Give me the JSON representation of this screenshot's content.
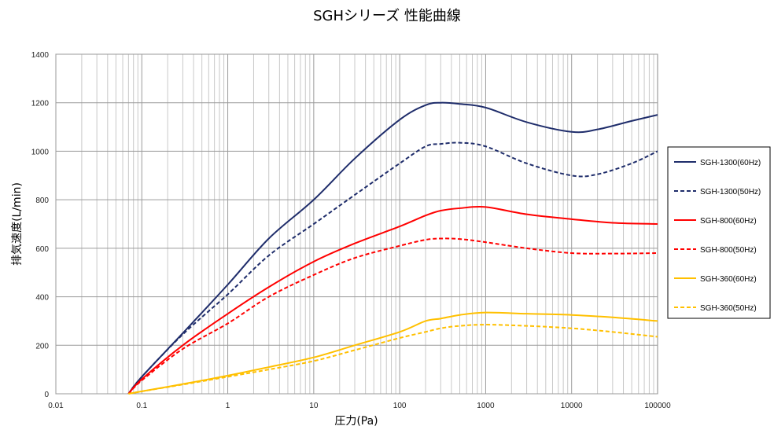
{
  "chart_data": {
    "type": "line",
    "title": "SGHシリーズ 性能曲線",
    "xlabel": "圧力(Pa)",
    "ylabel": "排気速度(L/min)",
    "x_scale": "log",
    "xlim": [
      0.01,
      100000
    ],
    "ylim": [
      0,
      1400
    ],
    "x_ticks": [
      "0.01",
      "0.1",
      "1",
      "10",
      "100",
      "1000",
      "10000",
      "100000"
    ],
    "y_ticks": [
      "0",
      "200",
      "400",
      "600",
      "800",
      "1000",
      "1200",
      "1400"
    ],
    "grid": true,
    "legend_position": "right",
    "series": [
      {
        "name": "SGH-1300(60Hz)",
        "color": "#1f2d6b",
        "dash": "solid",
        "points": [
          [
            0.07,
            0
          ],
          [
            0.1,
            70
          ],
          [
            0.3,
            250
          ],
          [
            1,
            450
          ],
          [
            3,
            640
          ],
          [
            10,
            800
          ],
          [
            30,
            970
          ],
          [
            100,
            1130
          ],
          [
            200,
            1190
          ],
          [
            300,
            1200
          ],
          [
            500,
            1195
          ],
          [
            1000,
            1180
          ],
          [
            3000,
            1120
          ],
          [
            10000,
            1080
          ],
          [
            20000,
            1090
          ],
          [
            50000,
            1125
          ],
          [
            100000,
            1150
          ]
        ]
      },
      {
        "name": "SGH-1300(50Hz)",
        "color": "#1f2d6b",
        "dash": "dashed",
        "points": [
          [
            0.07,
            0
          ],
          [
            0.1,
            70
          ],
          [
            0.3,
            245
          ],
          [
            1,
            410
          ],
          [
            3,
            570
          ],
          [
            10,
            700
          ],
          [
            30,
            820
          ],
          [
            100,
            950
          ],
          [
            200,
            1020
          ],
          [
            300,
            1030
          ],
          [
            500,
            1035
          ],
          [
            1000,
            1020
          ],
          [
            3000,
            950
          ],
          [
            10000,
            900
          ],
          [
            20000,
            905
          ],
          [
            50000,
            950
          ],
          [
            100000,
            1000
          ]
        ]
      },
      {
        "name": "SGH-800(60Hz)",
        "color": "#ff0000",
        "dash": "solid",
        "points": [
          [
            0.07,
            0
          ],
          [
            0.1,
            60
          ],
          [
            0.3,
            200
          ],
          [
            1,
            330
          ],
          [
            3,
            440
          ],
          [
            10,
            545
          ],
          [
            30,
            620
          ],
          [
            100,
            690
          ],
          [
            200,
            735
          ],
          [
            300,
            755
          ],
          [
            500,
            765
          ],
          [
            1000,
            770
          ],
          [
            3000,
            740
          ],
          [
            10000,
            720
          ],
          [
            30000,
            705
          ],
          [
            100000,
            700
          ]
        ]
      },
      {
        "name": "SGH-800(50Hz)",
        "color": "#ff0000",
        "dash": "dashed",
        "points": [
          [
            0.07,
            0
          ],
          [
            0.1,
            55
          ],
          [
            0.3,
            185
          ],
          [
            1,
            290
          ],
          [
            3,
            400
          ],
          [
            10,
            490
          ],
          [
            30,
            560
          ],
          [
            100,
            610
          ],
          [
            200,
            635
          ],
          [
            300,
            640
          ],
          [
            500,
            638
          ],
          [
            1000,
            625
          ],
          [
            3000,
            600
          ],
          [
            10000,
            580
          ],
          [
            30000,
            578
          ],
          [
            100000,
            580
          ]
        ]
      },
      {
        "name": "SGH-360(60Hz)",
        "color": "#ffc000",
        "dash": "solid",
        "points": [
          [
            0.07,
            0
          ],
          [
            0.1,
            10
          ],
          [
            0.3,
            40
          ],
          [
            1,
            75
          ],
          [
            3,
            110
          ],
          [
            10,
            150
          ],
          [
            30,
            200
          ],
          [
            100,
            255
          ],
          [
            200,
            300
          ],
          [
            300,
            310
          ],
          [
            500,
            325
          ],
          [
            1000,
            335
          ],
          [
            3000,
            330
          ],
          [
            10000,
            325
          ],
          [
            30000,
            315
          ],
          [
            100000,
            300
          ]
        ]
      },
      {
        "name": "SGH-360(50Hz)",
        "color": "#ffc000",
        "dash": "dashed",
        "points": [
          [
            0.07,
            0
          ],
          [
            0.1,
            10
          ],
          [
            0.3,
            38
          ],
          [
            1,
            70
          ],
          [
            3,
            100
          ],
          [
            10,
            135
          ],
          [
            30,
            180
          ],
          [
            100,
            230
          ],
          [
            200,
            255
          ],
          [
            300,
            270
          ],
          [
            500,
            280
          ],
          [
            1000,
            285
          ],
          [
            3000,
            280
          ],
          [
            10000,
            270
          ],
          [
            30000,
            255
          ],
          [
            100000,
            235
          ]
        ]
      }
    ]
  }
}
